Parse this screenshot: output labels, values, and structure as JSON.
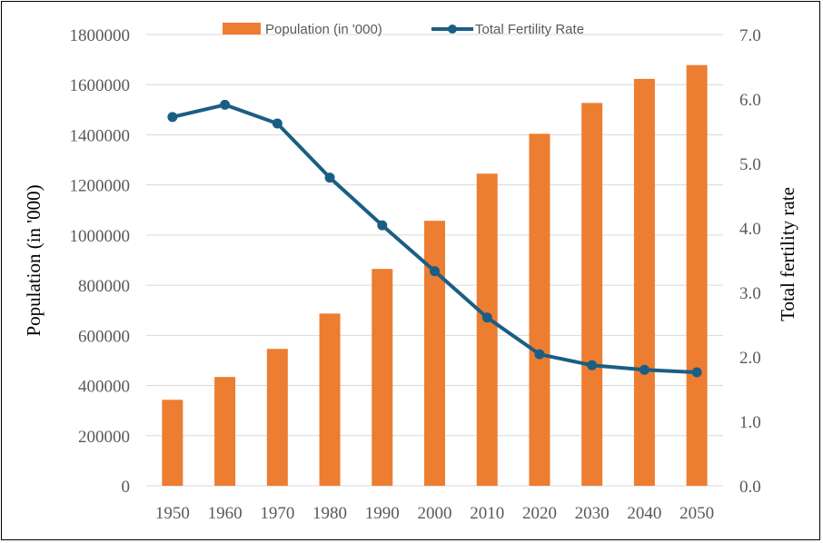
{
  "chart_data": {
    "type": "bar",
    "categories": [
      "1950",
      "1960",
      "1970",
      "1980",
      "1990",
      "2000",
      "2010",
      "2020",
      "2030",
      "2040",
      "2050"
    ],
    "series": [
      {
        "name": "Population (in '000)",
        "type": "bar",
        "axis": "left",
        "color": "#ED7D31",
        "values": [
          343000,
          434000,
          546000,
          687000,
          865000,
          1057000,
          1245000,
          1404000,
          1527000,
          1623000,
          1678000
        ]
      },
      {
        "name": "Total Fertility Rate",
        "type": "line",
        "axis": "right",
        "color": "#1B5E84",
        "values": [
          5.72,
          5.91,
          5.62,
          4.78,
          4.04,
          3.33,
          2.61,
          2.04,
          1.87,
          1.8,
          1.76
        ]
      }
    ],
    "ylabel": "Population (in '000)",
    "y2label": "Total fertility rate",
    "ylim": [
      0,
      1800000
    ],
    "y2lim": [
      0,
      7
    ],
    "yticks": [
      "0",
      "200000",
      "400000",
      "600000",
      "800000",
      "1000000",
      "1200000",
      "1400000",
      "1600000",
      "1800000"
    ],
    "y2ticks": [
      "0.0",
      "1.0",
      "2.0",
      "3.0",
      "4.0",
      "5.0",
      "6.0",
      "7.0"
    ],
    "grid": true,
    "legend": "top-center"
  }
}
